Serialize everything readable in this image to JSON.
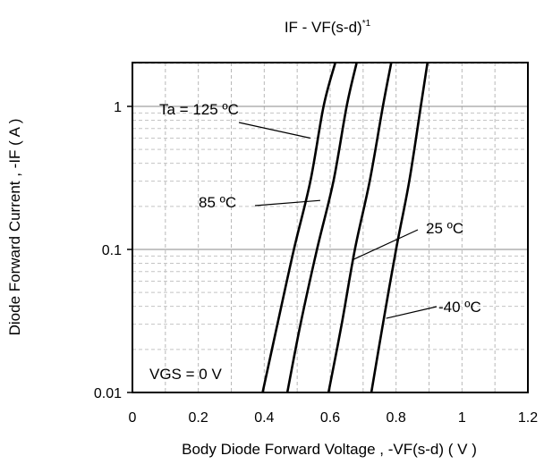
{
  "chart_data": {
    "type": "line",
    "title": "IF - VF(s-d)",
    "title_superscript": "*1",
    "xlabel": "Body Diode Forward Voltage , -VF(s-d) ( V )",
    "ylabel": "Diode Forward Current , -IF ( A )",
    "x_scale": "linear",
    "y_scale": "log",
    "xlim": [
      0,
      1.2
    ],
    "ylim": [
      0.01,
      2
    ],
    "x_ticks": [
      0,
      0.2,
      0.4,
      0.6,
      0.8,
      1,
      1.2
    ],
    "x_tick_labels": [
      "0",
      "0.2",
      "0.4",
      "0.6",
      "0.8",
      "1",
      "1.2"
    ],
    "y_ticks": [
      0.01,
      0.1,
      1
    ],
    "y_tick_labels": [
      "0.01",
      "0.1",
      "1"
    ],
    "grid": true,
    "series": [
      {
        "name": "Ta = 125 ºC",
        "x": [
          0.395,
          0.44,
          0.49,
          0.54,
          0.58,
          0.615
        ],
        "y": [
          0.01,
          0.03,
          0.1,
          0.3,
          1,
          2
        ]
      },
      {
        "name": "85 ºC",
        "x": [
          0.47,
          0.51,
          0.56,
          0.61,
          0.65,
          0.68
        ],
        "y": [
          0.01,
          0.03,
          0.1,
          0.3,
          1,
          2
        ]
      },
      {
        "name": "25 ºC",
        "x": [
          0.595,
          0.635,
          0.675,
          0.72,
          0.76,
          0.785
        ],
        "y": [
          0.01,
          0.03,
          0.1,
          0.3,
          1,
          2
        ]
      },
      {
        "name": "-40 ºC",
        "x": [
          0.725,
          0.76,
          0.8,
          0.84,
          0.875,
          0.895
        ],
        "y": [
          0.01,
          0.03,
          0.1,
          0.3,
          1,
          2
        ]
      }
    ],
    "annotations": [
      {
        "text": "Ta = 125 ºC",
        "series": 0,
        "x": 0.54,
        "y": 0.6
      },
      {
        "text": "85 ºC",
        "series": 1,
        "x": 0.57,
        "y": 0.22
      },
      {
        "text": "25 ºC",
        "series": 2,
        "x": 0.67,
        "y": 0.085
      },
      {
        "text": "-40 ºC",
        "series": 3,
        "x": 0.77,
        "y": 0.033
      },
      {
        "text": "VGS = 0 V"
      }
    ]
  }
}
